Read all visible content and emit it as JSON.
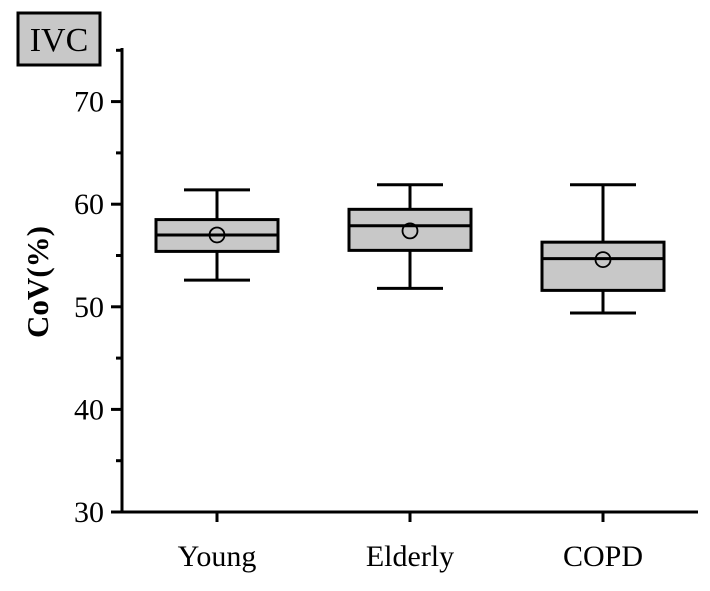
{
  "chart_data": {
    "type": "box",
    "panel_label": "IVC",
    "ylabel": "CoV(%)",
    "ylim": [
      30,
      75
    ],
    "yticks": [
      30,
      40,
      50,
      60,
      70
    ],
    "categories": [
      "Young",
      "Elderly",
      "COPD"
    ],
    "boxes": [
      {
        "category": "Young",
        "whisker_low": 52.6,
        "q1": 55.4,
        "median": 57.0,
        "q3": 58.5,
        "whisker_high": 61.4,
        "mean": 57.0
      },
      {
        "category": "Elderly",
        "whisker_low": 51.8,
        "q1": 55.5,
        "median": 57.9,
        "q3": 59.5,
        "whisker_high": 61.9,
        "mean": 57.4
      },
      {
        "category": "COPD",
        "whisker_low": 49.4,
        "q1": 51.6,
        "median": 54.7,
        "q3": 56.3,
        "whisker_high": 61.9,
        "mean": 54.6
      }
    ],
    "box_fill": "#c8c8c8",
    "badge_fill": "#c8c8c8"
  }
}
